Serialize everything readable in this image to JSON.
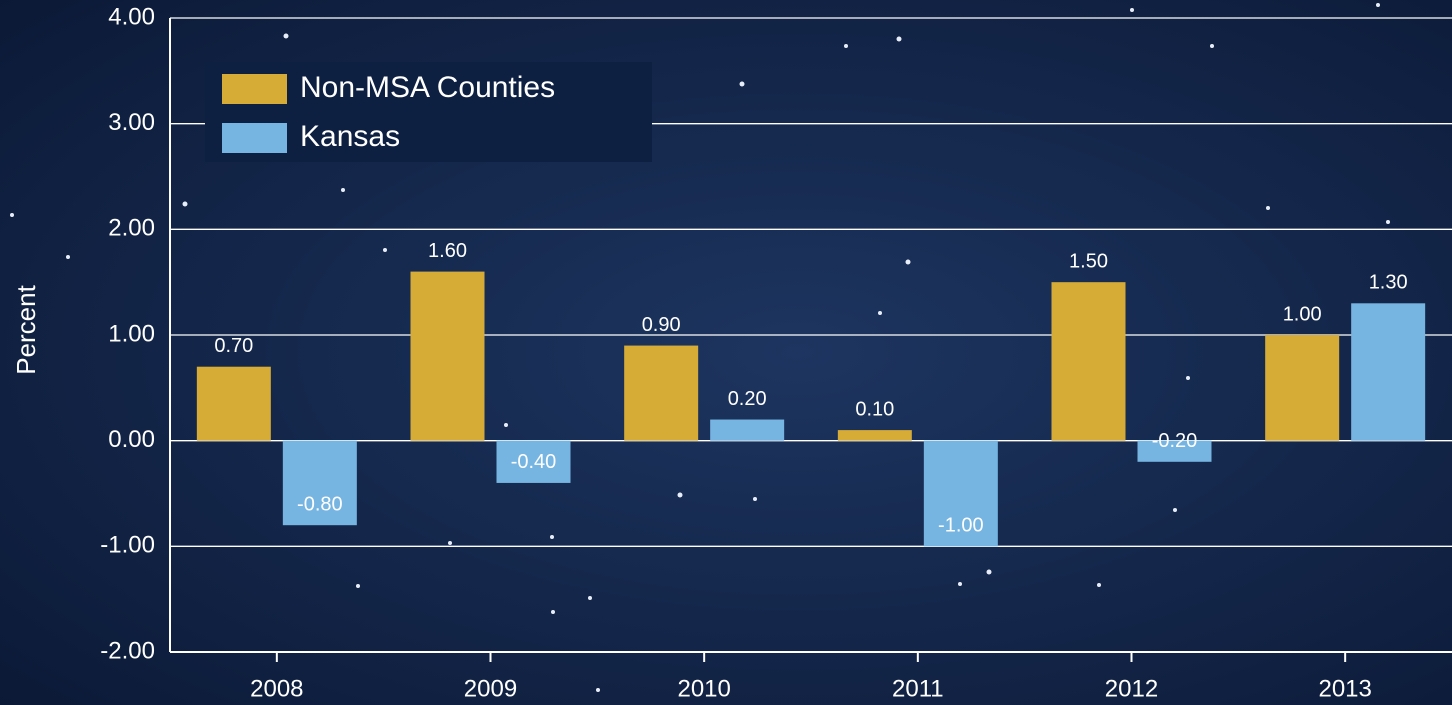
{
  "chart_data": {
    "type": "bar",
    "y_label": "Percent",
    "categories": [
      "2008",
      "2009",
      "2010",
      "2011",
      "2012",
      "2013"
    ],
    "series": [
      {
        "name": "Non-MSA Counties",
        "color": "#d6ab36",
        "values": [
          0.7,
          1.6,
          0.9,
          0.1,
          1.5,
          1.0
        ],
        "value_labels": [
          "0.70",
          "1.60",
          "0.90",
          "0.10",
          "1.50",
          "1.00"
        ]
      },
      {
        "name": "Kansas",
        "color": "#76b5e2",
        "values": [
          -0.8,
          -0.4,
          0.2,
          -1.0,
          -0.2,
          1.3
        ],
        "value_labels": [
          "-0.80",
          "-0.40",
          "0.20",
          "-1.00",
          "-0.20",
          "1.30"
        ]
      }
    ],
    "ylim": [
      -2,
      4
    ],
    "yticks": [
      {
        "value": -2,
        "label": "-2.00"
      },
      {
        "value": -1,
        "label": "-1.00"
      },
      {
        "value": 0,
        "label": "0.00"
      },
      {
        "value": 1,
        "label": "1.00"
      },
      {
        "value": 2,
        "label": "2.00"
      },
      {
        "value": 3,
        "label": "3.00"
      },
      {
        "value": 4,
        "label": "4.00"
      }
    ],
    "grid": true,
    "legend": "upper left"
  }
}
